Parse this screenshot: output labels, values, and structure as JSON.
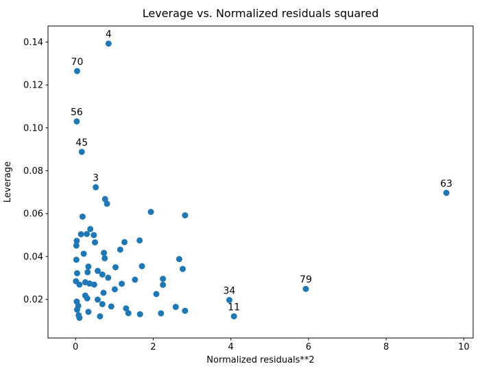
{
  "window": {
    "title": "Leverage vs. Normalized residuals squared"
  },
  "chart_data": {
    "type": "scatter",
    "title": "Leverage vs. Normalized residuals squared",
    "xlabel": "Normalized residuals**2",
    "ylabel": "Leverage",
    "xlim": [
      -0.71,
      10.24
    ],
    "ylim": [
      0.002,
      0.1475
    ],
    "grid": false,
    "legend": "none",
    "marker_color": "#1f77b4",
    "axis_color": "#000000",
    "xticks": [
      0,
      2,
      4,
      6,
      8,
      10
    ],
    "xtick_labels": [
      "0",
      "2",
      "4",
      "6",
      "8",
      "10"
    ],
    "yticks": [
      0.02,
      0.04,
      0.06,
      0.08,
      0.1,
      0.12,
      0.14
    ],
    "ytick_labels": [
      "0.02",
      "0.04",
      "0.06",
      "0.08",
      "0.10",
      "0.12",
      "0.14"
    ],
    "labeled_points": [
      {
        "label": "4",
        "x": 0.85,
        "y": 0.1393
      },
      {
        "label": "70",
        "x": 0.04,
        "y": 0.1265
      },
      {
        "label": "56",
        "x": 0.03,
        "y": 0.103
      },
      {
        "label": "45",
        "x": 0.16,
        "y": 0.0888
      },
      {
        "label": "3",
        "x": 0.52,
        "y": 0.0723
      },
      {
        "label": "63",
        "x": 9.55,
        "y": 0.0697
      },
      {
        "label": "79",
        "x": 5.93,
        "y": 0.0249
      },
      {
        "label": "34",
        "x": 3.96,
        "y": 0.0197
      },
      {
        "label": "11",
        "x": 4.08,
        "y": 0.0121
      }
    ],
    "points": [
      [
        0.76,
        0.0668
      ],
      [
        0.81,
        0.0646
      ],
      [
        1.94,
        0.0608
      ],
      [
        2.82,
        0.0592
      ],
      [
        0.18,
        0.0586
      ],
      [
        0.38,
        0.0528
      ],
      [
        0.29,
        0.0505
      ],
      [
        0.14,
        0.0504
      ],
      [
        0.47,
        0.05
      ],
      [
        0.03,
        0.0473
      ],
      [
        0.5,
        0.0466
      ],
      [
        1.26,
        0.0467
      ],
      [
        1.65,
        0.0475
      ],
      [
        0.02,
        0.0451
      ],
      [
        1.15,
        0.0432
      ],
      [
        0.73,
        0.0417
      ],
      [
        0.21,
        0.0413
      ],
      [
        0.75,
        0.0392
      ],
      [
        0.02,
        0.0385
      ],
      [
        2.67,
        0.0388
      ],
      [
        0.33,
        0.0353
      ],
      [
        1.03,
        0.035
      ],
      [
        1.71,
        0.0355
      ],
      [
        2.76,
        0.0342
      ],
      [
        0.57,
        0.0333
      ],
      [
        0.31,
        0.0327
      ],
      [
        0.04,
        0.0322
      ],
      [
        0.69,
        0.0316
      ],
      [
        0.84,
        0.0301
      ],
      [
        2.25,
        0.0296
      ],
      [
        1.53,
        0.0292
      ],
      [
        0.01,
        0.0285
      ],
      [
        0.25,
        0.028
      ],
      [
        0.36,
        0.0274
      ],
      [
        1.19,
        0.0273
      ],
      [
        0.1,
        0.0269
      ],
      [
        0.48,
        0.0269
      ],
      [
        2.25,
        0.0268
      ],
      [
        1.01,
        0.0247
      ],
      [
        0.72,
        0.0231
      ],
      [
        2.08,
        0.0225
      ],
      [
        0.25,
        0.0218
      ],
      [
        0.3,
        0.0205
      ],
      [
        0.57,
        0.0199
      ],
      [
        0.03,
        0.019
      ],
      [
        0.69,
        0.0178
      ],
      [
        0.07,
        0.017
      ],
      [
        0.92,
        0.0167
      ],
      [
        2.58,
        0.0165
      ],
      [
        1.3,
        0.0158
      ],
      [
        0.04,
        0.0152
      ],
      [
        2.82,
        0.0147
      ],
      [
        0.33,
        0.0142
      ],
      [
        1.36,
        0.0136
      ],
      [
        2.2,
        0.0135
      ],
      [
        1.66,
        0.0131
      ],
      [
        0.08,
        0.0126
      ],
      [
        0.63,
        0.0121
      ],
      [
        0.1,
        0.0114
      ]
    ]
  }
}
